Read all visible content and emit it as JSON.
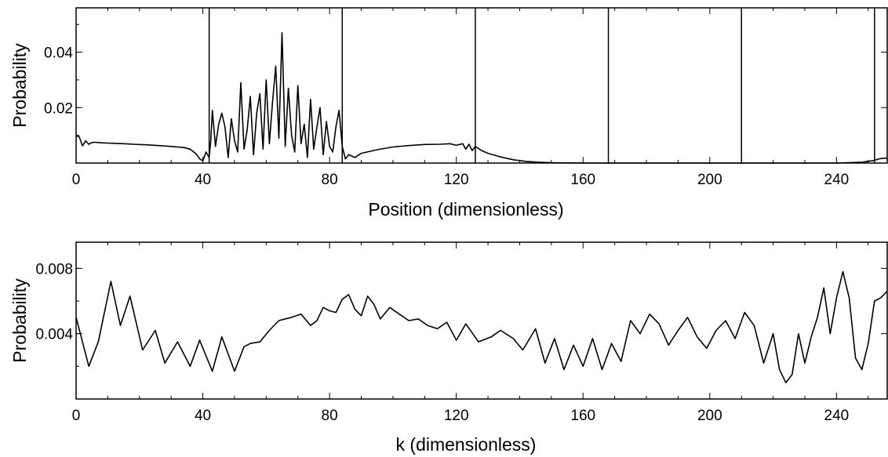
{
  "chart_data": [
    {
      "type": "line",
      "title": "",
      "xlabel": "Position (dimensionless)",
      "ylabel": "Probability",
      "xlim": [
        0,
        256
      ],
      "ylim": [
        0,
        0.056
      ],
      "xticks": [
        0,
        40,
        80,
        120,
        160,
        200,
        240
      ],
      "yticks": [
        0.02,
        0.04
      ],
      "ytick_labels": [
        "0.02",
        "0.04"
      ],
      "grid": false,
      "barriers_x": [
        42,
        84,
        126,
        168,
        210,
        252
      ],
      "series": [
        {
          "x": [
            0,
            1,
            2,
            3,
            4,
            5,
            6,
            8,
            10,
            12,
            15,
            18,
            22,
            26,
            30,
            34,
            36,
            38,
            39,
            40,
            41,
            42,
            42.5,
            43,
            44,
            45,
            46,
            47,
            48,
            49,
            50,
            51,
            52,
            53,
            54,
            55,
            56,
            57,
            58,
            59,
            60,
            61,
            62,
            63,
            64,
            65,
            66,
            67,
            68,
            69,
            70,
            71,
            72,
            73,
            74,
            75,
            76,
            77,
            78,
            79,
            80,
            81,
            82,
            83,
            84,
            85,
            86,
            88,
            90,
            95,
            100,
            105,
            110,
            115,
            118,
            120,
            122,
            123,
            124,
            125,
            126,
            128,
            130,
            134,
            138,
            142,
            146,
            150,
            160,
            170,
            180,
            190,
            200,
            210,
            220,
            230,
            240,
            248,
            251,
            252,
            253,
            254,
            256
          ],
          "y": [
            0.0098,
            0.0095,
            0.0062,
            0.008,
            0.0068,
            0.0074,
            0.0075,
            0.0073,
            0.0072,
            0.0071,
            0.007,
            0.0068,
            0.0066,
            0.0063,
            0.006,
            0.0056,
            0.005,
            0.0032,
            0.0015,
            0.0008,
            0.004,
            0.002,
            0.008,
            0.019,
            0.006,
            0.014,
            0.018,
            0.013,
            0.002,
            0.016,
            0.008,
            0.004,
            0.029,
            0.005,
            0.012,
            0.024,
            0.003,
            0.018,
            0.025,
            0.005,
            0.03,
            0.007,
            0.022,
            0.035,
            0.009,
            0.047,
            0.006,
            0.027,
            0.01,
            0.004,
            0.028,
            0.007,
            0.014,
            0.002,
            0.023,
            0.005,
            0.013,
            0.02,
            0.003,
            0.015,
            0.006,
            0.004,
            0.013,
            0.019,
            0.006,
            0.0015,
            0.003,
            0.002,
            0.0035,
            0.0048,
            0.0058,
            0.0063,
            0.0067,
            0.0068,
            0.007,
            0.0064,
            0.007,
            0.005,
            0.0068,
            0.0045,
            0.006,
            0.0045,
            0.0035,
            0.0022,
            0.0012,
            0.0006,
            0.0003,
            0.0001,
            0.0,
            0.0,
            0.0,
            0.0,
            0.0,
            0.0,
            0.0,
            0.0,
            0.0,
            0.0003,
            0.0008,
            0.001,
            0.0014,
            0.0016,
            0.0018
          ]
        }
      ]
    },
    {
      "type": "line",
      "title": "",
      "xlabel": "k (dimensionless)",
      "ylabel": "Probability",
      "xlim": [
        0,
        256
      ],
      "ylim": [
        0,
        0.0096
      ],
      "xticks": [
        0,
        40,
        80,
        120,
        160,
        200,
        240
      ],
      "yticks": [
        0.004,
        0.008
      ],
      "ytick_labels": [
        "0.004",
        "0.008"
      ],
      "grid": false,
      "series": [
        {
          "x": [
            0,
            4,
            7,
            11,
            14,
            17,
            21,
            25,
            28,
            32,
            36,
            39,
            43,
            46,
            50,
            53,
            55,
            58,
            61,
            64,
            68,
            71,
            74,
            76,
            78,
            80,
            82,
            84,
            86,
            88,
            90,
            92,
            94,
            96,
            99,
            102,
            105,
            108,
            111,
            114,
            117,
            120,
            123,
            127,
            131,
            134,
            138,
            141,
            145,
            148,
            151,
            154,
            157,
            160,
            163,
            166,
            169,
            172,
            175,
            178,
            181,
            184,
            187,
            190,
            193,
            196,
            199,
            202,
            205,
            208,
            211,
            214,
            217,
            220,
            222,
            224,
            226,
            228,
            230,
            232,
            234,
            236,
            238,
            240,
            242,
            244,
            246,
            248,
            250,
            252,
            254,
            256
          ],
          "y": [
            0.005,
            0.002,
            0.0035,
            0.0072,
            0.0045,
            0.0063,
            0.003,
            0.0042,
            0.0022,
            0.0035,
            0.002,
            0.0036,
            0.0017,
            0.0038,
            0.0017,
            0.0032,
            0.0034,
            0.0035,
            0.0042,
            0.0048,
            0.005,
            0.0052,
            0.0045,
            0.0048,
            0.0056,
            0.0054,
            0.0053,
            0.0061,
            0.0064,
            0.0055,
            0.0051,
            0.0063,
            0.0058,
            0.0049,
            0.0056,
            0.0052,
            0.0048,
            0.0049,
            0.0045,
            0.0043,
            0.0047,
            0.0036,
            0.0046,
            0.0035,
            0.0038,
            0.0042,
            0.0037,
            0.003,
            0.0043,
            0.0022,
            0.0037,
            0.0018,
            0.0033,
            0.002,
            0.0037,
            0.0018,
            0.0034,
            0.0023,
            0.0048,
            0.004,
            0.0052,
            0.0046,
            0.0033,
            0.0042,
            0.005,
            0.0038,
            0.0031,
            0.0042,
            0.0048,
            0.0037,
            0.0053,
            0.0045,
            0.0022,
            0.004,
            0.0018,
            0.001,
            0.0015,
            0.004,
            0.0022,
            0.0038,
            0.005,
            0.0068,
            0.004,
            0.0062,
            0.0078,
            0.0062,
            0.0025,
            0.0018,
            0.0034,
            0.006,
            0.0062,
            0.0066
          ]
        }
      ]
    }
  ]
}
